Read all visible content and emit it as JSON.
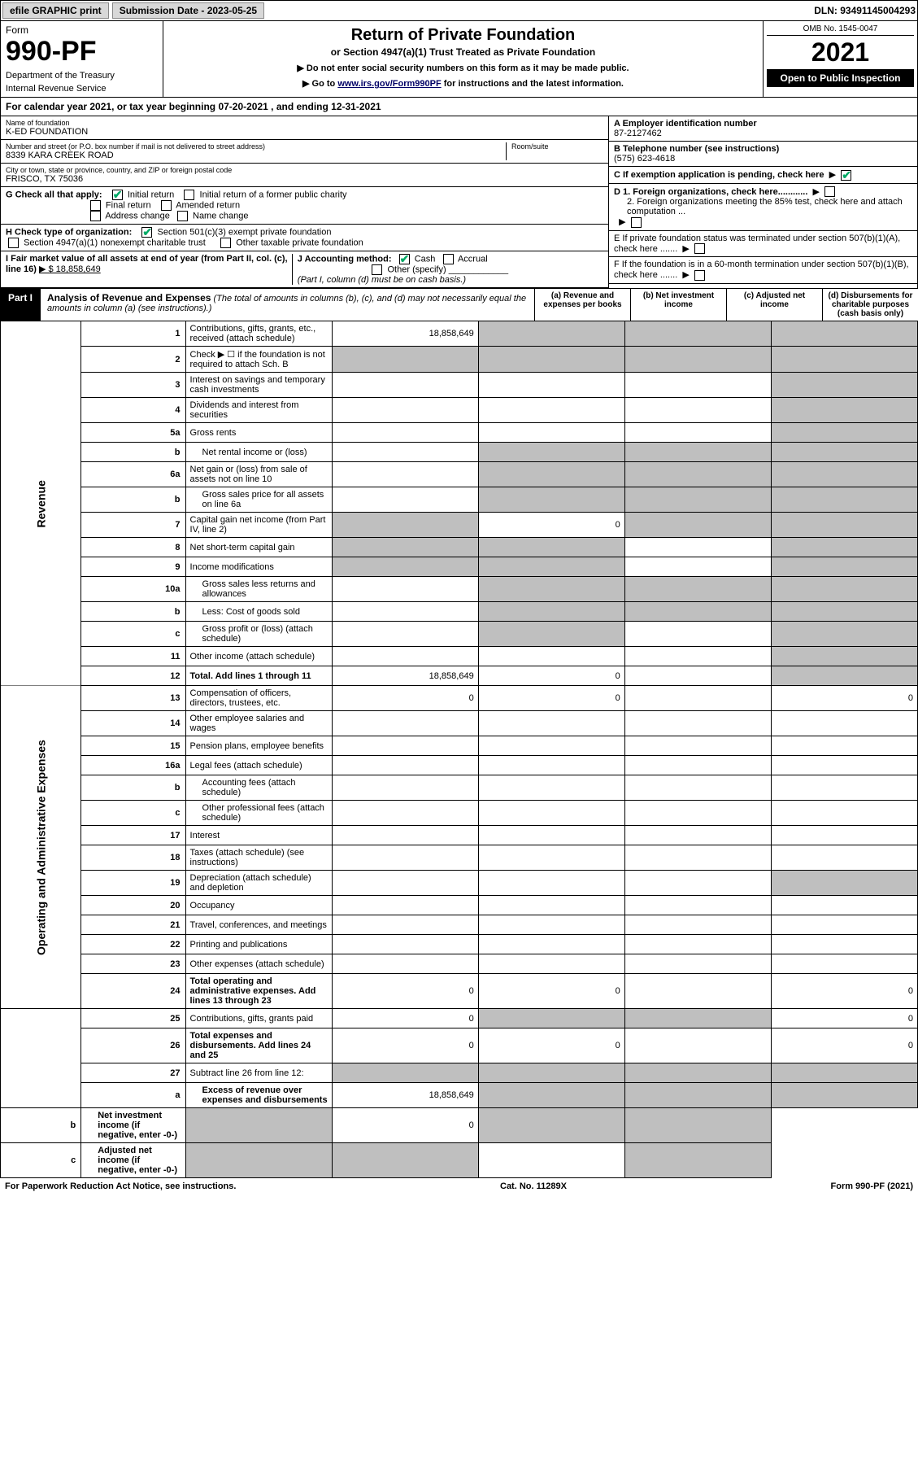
{
  "top_bar": {
    "efile": "efile GRAPHIC print",
    "sub_label": "Submission Date - 2023-05-25",
    "dln": "DLN: 93491145004293"
  },
  "header": {
    "form_word": "Form",
    "form_num": "990-PF",
    "dept": "Department of the Treasury",
    "irs": "Internal Revenue Service",
    "title": "Return of Private Foundation",
    "subtitle": "or Section 4947(a)(1) Trust Treated as Private Foundation",
    "note1": "▶ Do not enter social security numbers on this form as it may be made public.",
    "note2_pre": "▶ Go to ",
    "note2_link": "www.irs.gov/Form990PF",
    "note2_post": " for instructions and the latest information.",
    "omb": "OMB No. 1545-0047",
    "year": "2021",
    "open": "Open to Public Inspection"
  },
  "cal_year": "For calendar year 2021, or tax year beginning 07-20-2021              , and ending 12-31-2021",
  "info": {
    "name_lbl": "Name of foundation",
    "name": "K-ED FOUNDATION",
    "addr_lbl": "Number and street (or P.O. box number if mail is not delivered to street address)",
    "addr": "8339 KARA CREEK ROAD",
    "room_lbl": "Room/suite",
    "city_lbl": "City or town, state or province, country, and ZIP or foreign postal code",
    "city": "FRISCO, TX  75036",
    "ein_lbl": "A Employer identification number",
    "ein": "87-2127462",
    "tel_lbl": "B Telephone number (see instructions)",
    "tel": "(575) 623-4618",
    "c_lbl": "C If exemption application is pending, check here",
    "d1": "D 1. Foreign organizations, check here............",
    "d2": "2. Foreign organizations meeting the 85% test, check here and attach computation ...",
    "e_lbl": "E  If private foundation status was terminated under section 507(b)(1)(A), check here .......",
    "f_lbl": "F  If the foundation is in a 60-month termination under section 507(b)(1)(B), check here .......",
    "g_lbl": "G Check all that apply:",
    "g_opts": [
      "Initial return",
      "Initial return of a former public charity",
      "Final return",
      "Amended return",
      "Address change",
      "Name change"
    ],
    "h_lbl": "H Check type of organization:",
    "h_opts": [
      "Section 501(c)(3) exempt private foundation",
      "Section 4947(a)(1) nonexempt charitable trust",
      "Other taxable private foundation"
    ],
    "i_lbl": "I Fair market value of all assets at end of year (from Part II, col. (c), line 16)",
    "i_val": "▶ $  18,858,649",
    "j_lbl": "J Accounting method:",
    "j_opts": [
      "Cash",
      "Accrual",
      "Other (specify)"
    ],
    "j_note": "(Part I, column (d) must be on cash basis.)"
  },
  "part1": {
    "label": "Part I",
    "title": "Analysis of Revenue and Expenses",
    "title_note": "(The total of amounts in columns (b), (c), and (d) may not necessarily equal the amounts in column (a) (see instructions).)",
    "col_a": "(a) Revenue and expenses per books",
    "col_b": "(b) Net investment income",
    "col_c": "(c) Adjusted net income",
    "col_d": "(d) Disbursements for charitable purposes (cash basis only)",
    "side_revenue": "Revenue",
    "side_expenses": "Operating and Administrative Expenses"
  },
  "rows": [
    {
      "n": "1",
      "d": "Contributions, gifts, grants, etc., received (attach schedule)",
      "a": "18,858,649",
      "b": "s",
      "c": "s",
      "e": "s"
    },
    {
      "n": "2",
      "d": "Check ▶ ☐ if the foundation is not required to attach Sch. B",
      "a": "s",
      "b": "s",
      "c": "s",
      "e": "s",
      "bold_not": true
    },
    {
      "n": "3",
      "d": "Interest on savings and temporary cash investments",
      "a": "",
      "b": "",
      "c": "",
      "e": "s"
    },
    {
      "n": "4",
      "d": "Dividends and interest from securities",
      "a": "",
      "b": "",
      "c": "",
      "e": "s"
    },
    {
      "n": "5a",
      "d": "Gross rents",
      "a": "",
      "b": "",
      "c": "",
      "e": "s"
    },
    {
      "n": "b",
      "d": "Net rental income or (loss)",
      "a": "",
      "b": "s",
      "c": "s",
      "e": "s",
      "ind": true
    },
    {
      "n": "6a",
      "d": "Net gain or (loss) from sale of assets not on line 10",
      "a": "",
      "b": "s",
      "c": "s",
      "e": "s"
    },
    {
      "n": "b",
      "d": "Gross sales price for all assets on line 6a",
      "a": "",
      "b": "s",
      "c": "s",
      "e": "s",
      "ind": true
    },
    {
      "n": "7",
      "d": "Capital gain net income (from Part IV, line 2)",
      "a": "s",
      "b": "0",
      "c": "s",
      "e": "s"
    },
    {
      "n": "8",
      "d": "Net short-term capital gain",
      "a": "s",
      "b": "s",
      "c": "",
      "e": "s"
    },
    {
      "n": "9",
      "d": "Income modifications",
      "a": "s",
      "b": "s",
      "c": "",
      "e": "s"
    },
    {
      "n": "10a",
      "d": "Gross sales less returns and allowances",
      "a": "",
      "b": "s",
      "c": "s",
      "e": "s",
      "ind": true
    },
    {
      "n": "b",
      "d": "Less: Cost of goods sold",
      "a": "",
      "b": "s",
      "c": "s",
      "e": "s",
      "ind": true
    },
    {
      "n": "c",
      "d": "Gross profit or (loss) (attach schedule)",
      "a": "",
      "b": "s",
      "c": "",
      "e": "s",
      "ind": true
    },
    {
      "n": "11",
      "d": "Other income (attach schedule)",
      "a": "",
      "b": "",
      "c": "",
      "e": "s"
    },
    {
      "n": "12",
      "d": "Total. Add lines 1 through 11",
      "a": "18,858,649",
      "b": "0",
      "c": "",
      "e": "s",
      "bold": true
    },
    {
      "n": "13",
      "d": "Compensation of officers, directors, trustees, etc.",
      "a": "0",
      "b": "0",
      "c": "",
      "e": "0"
    },
    {
      "n": "14",
      "d": "Other employee salaries and wages",
      "a": "",
      "b": "",
      "c": "",
      "e": ""
    },
    {
      "n": "15",
      "d": "Pension plans, employee benefits",
      "a": "",
      "b": "",
      "c": "",
      "e": ""
    },
    {
      "n": "16a",
      "d": "Legal fees (attach schedule)",
      "a": "",
      "b": "",
      "c": "",
      "e": ""
    },
    {
      "n": "b",
      "d": "Accounting fees (attach schedule)",
      "a": "",
      "b": "",
      "c": "",
      "e": "",
      "ind": true
    },
    {
      "n": "c",
      "d": "Other professional fees (attach schedule)",
      "a": "",
      "b": "",
      "c": "",
      "e": "",
      "ind": true
    },
    {
      "n": "17",
      "d": "Interest",
      "a": "",
      "b": "",
      "c": "",
      "e": ""
    },
    {
      "n": "18",
      "d": "Taxes (attach schedule) (see instructions)",
      "a": "",
      "b": "",
      "c": "",
      "e": ""
    },
    {
      "n": "19",
      "d": "Depreciation (attach schedule) and depletion",
      "a": "",
      "b": "",
      "c": "",
      "e": "s"
    },
    {
      "n": "20",
      "d": "Occupancy",
      "a": "",
      "b": "",
      "c": "",
      "e": ""
    },
    {
      "n": "21",
      "d": "Travel, conferences, and meetings",
      "a": "",
      "b": "",
      "c": "",
      "e": ""
    },
    {
      "n": "22",
      "d": "Printing and publications",
      "a": "",
      "b": "",
      "c": "",
      "e": ""
    },
    {
      "n": "23",
      "d": "Other expenses (attach schedule)",
      "a": "",
      "b": "",
      "c": "",
      "e": ""
    },
    {
      "n": "24",
      "d": "Total operating and administrative expenses. Add lines 13 through 23",
      "a": "0",
      "b": "0",
      "c": "",
      "e": "0",
      "bold": true
    },
    {
      "n": "25",
      "d": "Contributions, gifts, grants paid",
      "a": "0",
      "b": "s",
      "c": "s",
      "e": "0"
    },
    {
      "n": "26",
      "d": "Total expenses and disbursements. Add lines 24 and 25",
      "a": "0",
      "b": "0",
      "c": "",
      "e": "0",
      "bold": true
    },
    {
      "n": "27",
      "d": "Subtract line 26 from line 12:",
      "a": "s",
      "b": "s",
      "c": "s",
      "e": "s"
    },
    {
      "n": "a",
      "d": "Excess of revenue over expenses and disbursements",
      "a": "18,858,649",
      "b": "s",
      "c": "s",
      "e": "s",
      "bold": true,
      "ind": true
    },
    {
      "n": "b",
      "d": "Net investment income (if negative, enter -0-)",
      "a": "s",
      "b": "0",
      "c": "s",
      "e": "s",
      "bold": true,
      "ind": true
    },
    {
      "n": "c",
      "d": "Adjusted net income (if negative, enter -0-)",
      "a": "s",
      "b": "s",
      "c": "",
      "e": "s",
      "bold": true,
      "ind": true
    }
  ],
  "footer": {
    "left": "For Paperwork Reduction Act Notice, see instructions.",
    "mid": "Cat. No. 11289X",
    "right": "Form 990-PF (2021)"
  },
  "colors": {
    "shade": "#bfbfbf",
    "link": "#003366",
    "check": "#0a6"
  }
}
